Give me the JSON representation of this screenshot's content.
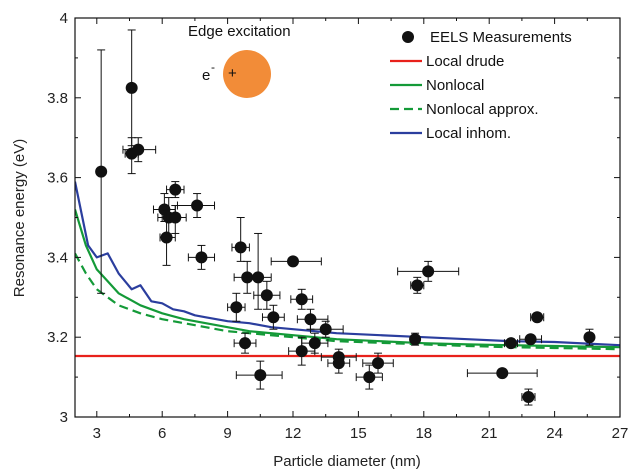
{
  "chart_data": {
    "type": "scatter",
    "xlabel": "Particle diameter (nm)",
    "ylabel": "Resonance energy (eV)",
    "xlim": [
      2,
      27
    ],
    "ylim": [
      3.0,
      4.0
    ],
    "x_ticks": [
      3,
      6,
      9,
      12,
      15,
      18,
      21,
      24,
      27
    ],
    "y_ticks": [
      3,
      3.2,
      3.4,
      3.6,
      3.8,
      4
    ],
    "y_tick_labels": [
      "3",
      "3.2",
      "3.4",
      "3.6",
      "3.8",
      "4"
    ],
    "x_tick_labels": [
      "3",
      "6",
      "9",
      "12",
      "15",
      "18",
      "21",
      "24",
      "27"
    ],
    "legend_position": "top-right",
    "grid": false,
    "annotation": {
      "title": "Edge excitation",
      "electron": "e",
      "electron_sup": "-",
      "plus": "+",
      "sphere_color": "#F28C38"
    },
    "series": [
      {
        "name": "EELS Measurements",
        "kind": "points",
        "color": "#111111",
        "points": [
          {
            "x": 3.2,
            "y": 3.615,
            "ylo": 3.31,
            "yhi": 3.92,
            "xlo": 3.2,
            "xhi": 3.2
          },
          {
            "x": 4.6,
            "y": 3.825,
            "ylo": 3.68,
            "yhi": 3.97,
            "xlo": 4.6,
            "xhi": 4.6
          },
          {
            "x": 4.6,
            "y": 3.66,
            "ylo": 3.61,
            "yhi": 3.7,
            "xlo": 4.3,
            "xhi": 4.9
          },
          {
            "x": 4.9,
            "y": 3.67,
            "ylo": 3.64,
            "yhi": 3.7,
            "xlo": 4.2,
            "xhi": 5.7
          },
          {
            "x": 6.1,
            "y": 3.52,
            "ylo": 3.49,
            "yhi": 3.56,
            "xlo": 5.6,
            "xhi": 6.6
          },
          {
            "x": 6.3,
            "y": 3.5,
            "ylo": 3.45,
            "yhi": 3.55,
            "xlo": 5.8,
            "xhi": 6.8
          },
          {
            "x": 6.6,
            "y": 3.57,
            "ylo": 3.55,
            "yhi": 3.59,
            "xlo": 6.2,
            "xhi": 7.0
          },
          {
            "x": 6.6,
            "y": 3.5,
            "ylo": 3.46,
            "yhi": 3.53,
            "xlo": 6.0,
            "xhi": 7.1
          },
          {
            "x": 6.2,
            "y": 3.45,
            "ylo": 3.38,
            "yhi": 3.52,
            "xlo": 5.9,
            "xhi": 6.6
          },
          {
            "x": 7.6,
            "y": 3.53,
            "ylo": 3.5,
            "yhi": 3.56,
            "xlo": 6.7,
            "xhi": 8.4
          },
          {
            "x": 7.8,
            "y": 3.4,
            "ylo": 3.37,
            "yhi": 3.43,
            "xlo": 7.2,
            "xhi": 8.4
          },
          {
            "x": 9.6,
            "y": 3.425,
            "ylo": 3.39,
            "yhi": 3.5,
            "xlo": 9.2,
            "xhi": 10.0
          },
          {
            "x": 9.9,
            "y": 3.35,
            "ylo": 3.31,
            "yhi": 3.39,
            "xlo": 9.3,
            "xhi": 10.5
          },
          {
            "x": 10.4,
            "y": 3.35,
            "ylo": 3.27,
            "yhi": 3.46,
            "xlo": 9.9,
            "xhi": 11.0
          },
          {
            "x": 9.4,
            "y": 3.275,
            "ylo": 3.24,
            "yhi": 3.31,
            "xlo": 9.0,
            "xhi": 9.8
          },
          {
            "x": 10.8,
            "y": 3.305,
            "ylo": 3.27,
            "yhi": 3.34,
            "xlo": 10.2,
            "xhi": 11.4
          },
          {
            "x": 11.1,
            "y": 3.25,
            "ylo": 3.22,
            "yhi": 3.28,
            "xlo": 10.6,
            "xhi": 11.6
          },
          {
            "x": 12.0,
            "y": 3.39,
            "ylo": 3.39,
            "yhi": 3.39,
            "xlo": 11.0,
            "xhi": 13.3
          },
          {
            "x": 12.4,
            "y": 3.295,
            "ylo": 3.27,
            "yhi": 3.32,
            "xlo": 11.9,
            "xhi": 12.9
          },
          {
            "x": 12.8,
            "y": 3.245,
            "ylo": 3.22,
            "yhi": 3.27,
            "xlo": 12.2,
            "xhi": 13.6
          },
          {
            "x": 13.5,
            "y": 3.22,
            "ylo": 3.2,
            "yhi": 3.24,
            "xlo": 12.8,
            "xhi": 14.3
          },
          {
            "x": 9.8,
            "y": 3.185,
            "ylo": 3.16,
            "yhi": 3.21,
            "xlo": 9.3,
            "xhi": 10.3
          },
          {
            "x": 12.4,
            "y": 3.165,
            "ylo": 3.13,
            "yhi": 3.2,
            "xlo": 11.8,
            "xhi": 13.0
          },
          {
            "x": 13.0,
            "y": 3.185,
            "ylo": 3.16,
            "yhi": 3.21,
            "xlo": 12.4,
            "xhi": 13.6
          },
          {
            "x": 14.1,
            "y": 3.15,
            "ylo": 3.13,
            "yhi": 3.17,
            "xlo": 13.3,
            "xhi": 14.9
          },
          {
            "x": 14.1,
            "y": 3.135,
            "ylo": 3.11,
            "yhi": 3.16,
            "xlo": 13.6,
            "xhi": 14.6
          },
          {
            "x": 10.5,
            "y": 3.105,
            "ylo": 3.07,
            "yhi": 3.14,
            "xlo": 9.4,
            "xhi": 11.5
          },
          {
            "x": 15.5,
            "y": 3.1,
            "ylo": 3.07,
            "yhi": 3.13,
            "xlo": 14.9,
            "xhi": 16.1
          },
          {
            "x": 15.9,
            "y": 3.135,
            "ylo": 3.11,
            "yhi": 3.16,
            "xlo": 15.2,
            "xhi": 16.6
          },
          {
            "x": 17.6,
            "y": 3.195,
            "ylo": 3.18,
            "yhi": 3.21,
            "xlo": 17.5,
            "xhi": 17.7
          },
          {
            "x": 17.7,
            "y": 3.33,
            "ylo": 3.31,
            "yhi": 3.35,
            "xlo": 17.4,
            "xhi": 18.0
          },
          {
            "x": 18.2,
            "y": 3.365,
            "ylo": 3.34,
            "yhi": 3.39,
            "xlo": 16.8,
            "xhi": 19.6
          },
          {
            "x": 21.6,
            "y": 3.11,
            "ylo": 3.11,
            "yhi": 3.11,
            "xlo": 20.0,
            "xhi": 23.2
          },
          {
            "x": 22.0,
            "y": 3.185,
            "ylo": 3.18,
            "yhi": 3.19,
            "xlo": 21.7,
            "xhi": 22.3
          },
          {
            "x": 22.8,
            "y": 3.05,
            "ylo": 3.03,
            "yhi": 3.07,
            "xlo": 22.5,
            "xhi": 23.1
          },
          {
            "x": 22.9,
            "y": 3.195,
            "ylo": 3.19,
            "yhi": 3.2,
            "xlo": 22.4,
            "xhi": 23.4
          },
          {
            "x": 23.2,
            "y": 3.25,
            "ylo": 3.24,
            "yhi": 3.26,
            "xlo": 22.9,
            "xhi": 23.5
          },
          {
            "x": 25.6,
            "y": 3.2,
            "ylo": 3.18,
            "yhi": 3.22,
            "xlo": 25.6,
            "xhi": 25.6
          }
        ]
      },
      {
        "name": "Local drude",
        "kind": "line",
        "color": "#E8211B",
        "dash": "solid",
        "x": [
          2,
          27
        ],
        "y": [
          3.153,
          3.153
        ]
      },
      {
        "name": "Nonlocal",
        "kind": "line",
        "color": "#149A38",
        "dash": "solid",
        "x": [
          2.0,
          2.5,
          3.0,
          3.5,
          4.0,
          5.0,
          6.0,
          7.0,
          8.0,
          9.0,
          10.0,
          12.0,
          14.0,
          16.0,
          18.0,
          20.0,
          22.0,
          24.0,
          27.0
        ],
        "y": [
          3.52,
          3.43,
          3.37,
          3.34,
          3.31,
          3.28,
          3.26,
          3.245,
          3.235,
          3.225,
          3.215,
          3.205,
          3.195,
          3.19,
          3.185,
          3.182,
          3.18,
          3.178,
          3.175
        ]
      },
      {
        "name": "Nonlocal approx.",
        "kind": "line",
        "color": "#149A38",
        "dash": "dashed",
        "x": [
          2.0,
          2.5,
          3.0,
          3.5,
          4.0,
          5.0,
          6.0,
          7.0,
          8.0,
          9.0,
          10.0,
          12.0,
          14.0,
          16.0,
          18.0,
          20.0,
          22.0,
          24.0,
          27.0
        ],
        "y": [
          3.41,
          3.36,
          3.32,
          3.3,
          3.28,
          3.26,
          3.245,
          3.235,
          3.225,
          3.215,
          3.21,
          3.2,
          3.19,
          3.186,
          3.182,
          3.178,
          3.175,
          3.173,
          3.17
        ]
      },
      {
        "name": "Local inhom.",
        "kind": "line",
        "color": "#2B3E9E",
        "dash": "solid",
        "x": [
          2.0,
          2.6,
          3.0,
          3.5,
          4.0,
          4.6,
          5.0,
          5.5,
          6.0,
          6.5,
          7.0,
          7.5,
          8.0,
          9.0,
          10.0,
          11.0,
          12.0,
          14.0,
          16.0,
          18.0,
          20.0,
          22.0,
          24.0,
          27.0
        ],
        "y": [
          3.59,
          3.43,
          3.4,
          3.41,
          3.36,
          3.32,
          3.33,
          3.29,
          3.285,
          3.27,
          3.265,
          3.255,
          3.25,
          3.24,
          3.235,
          3.225,
          3.22,
          3.21,
          3.205,
          3.2,
          3.195,
          3.19,
          3.188,
          3.18
        ]
      }
    ]
  }
}
